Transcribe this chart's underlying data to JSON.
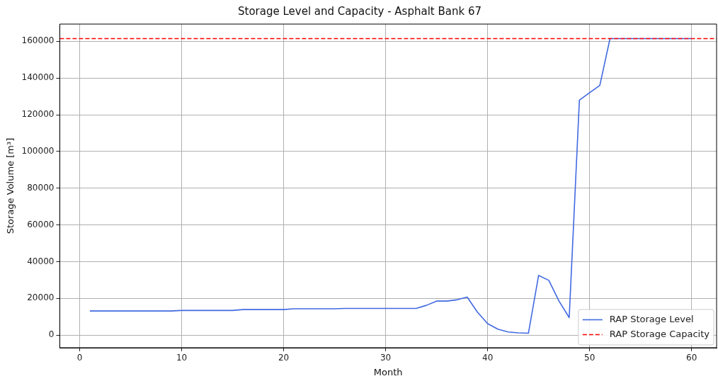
{
  "chart_data": {
    "type": "line",
    "title": "Storage Level and Capacity - Asphalt Bank 67",
    "xlabel": "Month",
    "ylabel": "Storage Volume [m³]",
    "x": [
      1,
      2,
      3,
      4,
      5,
      6,
      7,
      8,
      9,
      10,
      11,
      12,
      13,
      14,
      15,
      16,
      17,
      18,
      19,
      20,
      21,
      22,
      23,
      24,
      25,
      26,
      27,
      28,
      29,
      30,
      31,
      32,
      33,
      34,
      35,
      36,
      37,
      38,
      39,
      40,
      41,
      42,
      43,
      44,
      45,
      46,
      47,
      48,
      49,
      50,
      51,
      52,
      53,
      54,
      55,
      56,
      57,
      58,
      59,
      60
    ],
    "series": [
      {
        "name": "RAP Storage Level",
        "color": "#4169e1",
        "values": [
          13100,
          13100,
          13100,
          13100,
          13100,
          13100,
          13100,
          13100,
          13100,
          13400,
          13400,
          13400,
          13400,
          13400,
          13400,
          13900,
          13900,
          13900,
          13900,
          13900,
          14300,
          14300,
          14300,
          14300,
          14300,
          14500,
          14500,
          14500,
          14500,
          14500,
          14500,
          14500,
          14500,
          16200,
          18500,
          18500,
          19200,
          20700,
          12500,
          6200,
          3200,
          1700,
          1200,
          1000,
          32500,
          29800,
          18500,
          9500,
          128000,
          132000,
          136000,
          161500,
          161500,
          161500,
          161500,
          161500,
          161500,
          161500,
          161500,
          161500
        ]
      }
    ],
    "ref_lines": [
      {
        "axis": "y",
        "value": 161500,
        "label": "RAP Storage Capacity",
        "color": "#ff0000",
        "line_style": "dashed"
      }
    ],
    "xlim": [
      -1.95,
      62.45
    ],
    "xticks": [
      0,
      10,
      20,
      30,
      40,
      50,
      60
    ],
    "ylim": [
      -6900,
      169400
    ],
    "yticks": [
      0,
      20000,
      40000,
      60000,
      80000,
      100000,
      120000,
      140000,
      160000
    ],
    "grid": true,
    "legend": "bottom right",
    "marker": "none",
    "line_style": "solid"
  }
}
